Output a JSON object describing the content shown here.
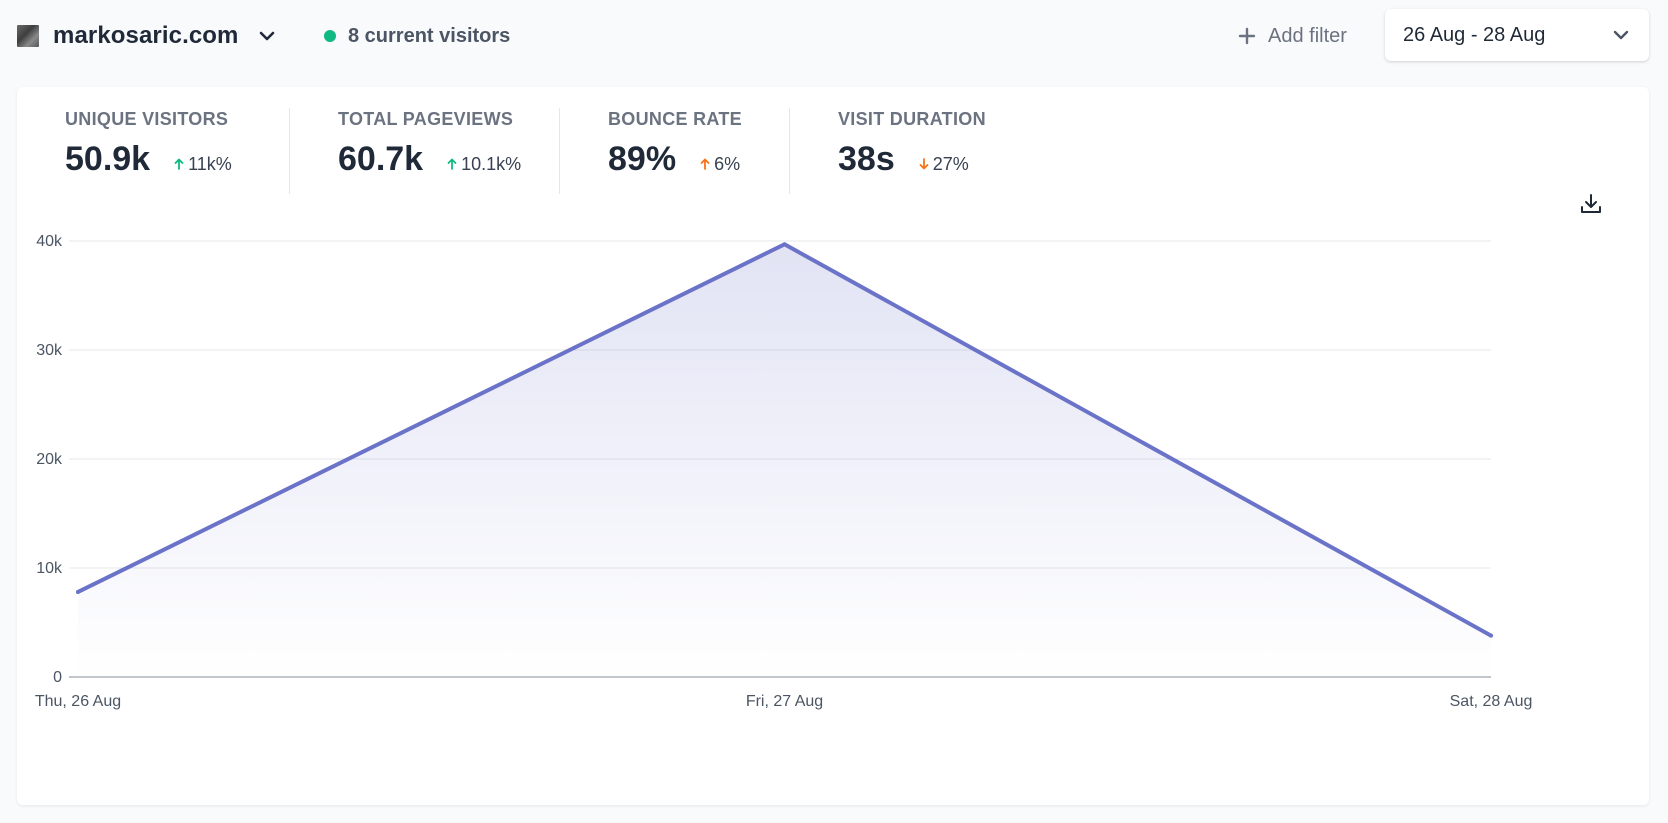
{
  "header": {
    "site_name": "markosaric.com",
    "current_visitors": "8 current visitors",
    "add_filter": "Add filter",
    "date_range": "26 Aug - 28 Aug"
  },
  "stats": [
    {
      "label": "UNIQUE VISITORS",
      "value": "50.9k",
      "change": "11k%",
      "direction": "up",
      "color": "#10b981"
    },
    {
      "label": "TOTAL PAGEVIEWS",
      "value": "60.7k",
      "change": "10.1k%",
      "direction": "up",
      "color": "#10b981"
    },
    {
      "label": "BOUNCE RATE",
      "value": "89%",
      "change": "6%",
      "direction": "up",
      "color": "#f97316"
    },
    {
      "label": "VISIT DURATION",
      "value": "38s",
      "change": "27%",
      "direction": "down",
      "color": "#f97316"
    }
  ],
  "icons": {
    "site": "favicon-icon",
    "site_menu": "chevron-down-icon",
    "live": "live-dot-icon",
    "filter": "plus-icon",
    "date_menu": "chevron-down-icon",
    "download": "download-icon"
  },
  "colors": {
    "line": "#6b73c9",
    "live": "#10b981"
  },
  "chart_data": {
    "type": "area",
    "categories": [
      "Thu, 26 Aug",
      "Fri, 27 Aug",
      "Sat, 28 Aug"
    ],
    "series": [
      {
        "values": [
          7800,
          39700,
          3800
        ]
      }
    ],
    "yticks": [
      "0",
      "10k",
      "20k",
      "30k",
      "40k"
    ],
    "ylim": [
      0,
      40000
    ],
    "grid": true
  }
}
